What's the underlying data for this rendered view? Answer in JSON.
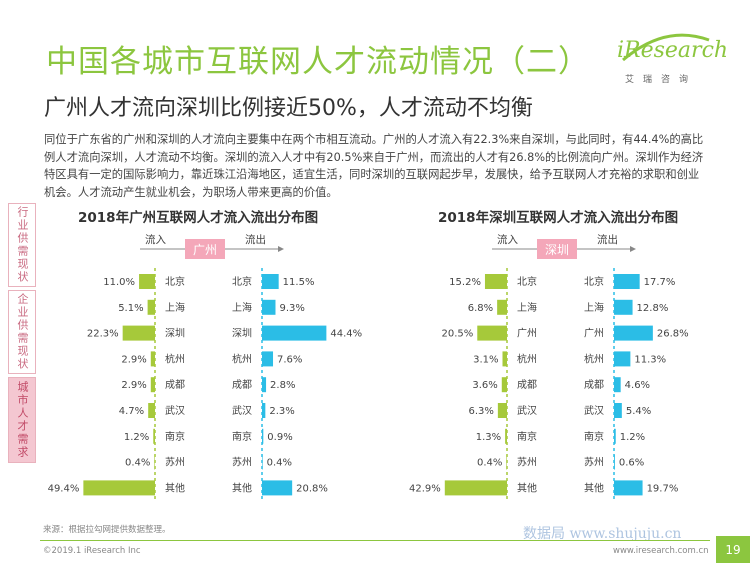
{
  "page": {
    "title": "中国各城市互联网人才流动情况（二）",
    "subtitle": "广州人才流向深圳比例接近50%，人才流动不均衡",
    "description": "同位于广东省的广州和深圳的人才流向主要集中在两个市相互流动。广州的人才流入有22.3%来自深圳，与此同时，有44.4%的高比例人才流向深圳，人才流动不均衡。深圳的流入人才中有20.5%来自于广州，而流出的人才有26.8%的比例流向广州。深圳作为经济特区具有一定的国际影响力，靠近珠江沿海地区，适宜生活，同时深圳的互联网起步早，发展快，给予互联网人才充裕的求职和创业机会。人才流动产生就业机会，为职场人带来更高的价值。",
    "logo_main": "iResearch",
    "logo_sub": "艾瑞咨询",
    "source": "来源：根据拉勾网提供数据整理。",
    "copyright": "©2019.1 iResearch Inc",
    "website": "www.iresearch.com.cn",
    "watermark": "数据局 www.shujuju.cn",
    "page_number": "19"
  },
  "sidetabs": [
    "行业供需现状",
    "企业供需现状",
    "城市人才需求"
  ],
  "colors": {
    "inflow": "#a6c93a",
    "outflow": "#2bbde6",
    "center": "#f4a7b9",
    "title": "#8cc63f"
  },
  "chart_data": [
    {
      "type": "bar",
      "title": "2018年广州互联网人才流入流出分布图",
      "center_label": "广州",
      "inflow_label": "流入",
      "outflow_label": "流出",
      "in_categories": [
        "北京",
        "上海",
        "深圳",
        "杭州",
        "成都",
        "武汉",
        "南京",
        "苏州",
        "其他"
      ],
      "in_values": [
        11.0,
        5.1,
        22.3,
        2.9,
        2.9,
        4.7,
        1.2,
        0.4,
        49.4
      ],
      "out_categories": [
        "北京",
        "上海",
        "深圳",
        "杭州",
        "成都",
        "武汉",
        "南京",
        "苏州",
        "其他"
      ],
      "out_values": [
        11.5,
        9.3,
        44.4,
        7.6,
        2.8,
        2.3,
        0.9,
        0.4,
        20.8
      ]
    },
    {
      "type": "bar",
      "title": "2018年深圳互联网人才流入流出分布图",
      "center_label": "深圳",
      "inflow_label": "流入",
      "outflow_label": "流出",
      "in_categories": [
        "北京",
        "上海",
        "广州",
        "杭州",
        "成都",
        "武汉",
        "南京",
        "苏州",
        "其他"
      ],
      "in_values": [
        15.2,
        6.8,
        20.5,
        3.1,
        3.6,
        6.3,
        1.3,
        0.4,
        42.9
      ],
      "out_categories": [
        "北京",
        "上海",
        "广州",
        "杭州",
        "成都",
        "武汉",
        "南京",
        "苏州",
        "其他"
      ],
      "out_values": [
        17.7,
        12.8,
        26.8,
        11.3,
        4.6,
        5.4,
        1.2,
        0.6,
        19.7
      ]
    }
  ]
}
